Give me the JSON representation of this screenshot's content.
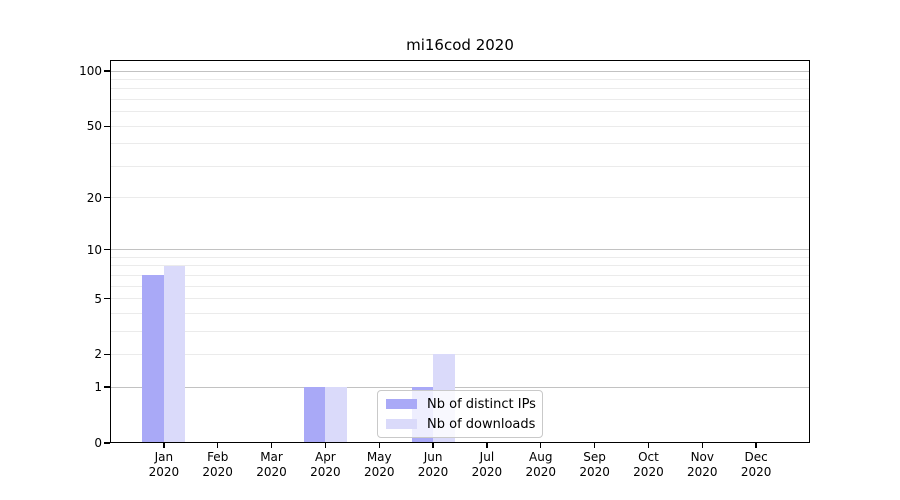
{
  "title": "mi16cod 2020",
  "chart_data": {
    "type": "bar",
    "title": "mi16cod 2020",
    "categories": [
      "Jan",
      "Feb",
      "Mar",
      "Apr",
      "May",
      "Jun",
      "Jul",
      "Aug",
      "Sep",
      "Oct",
      "Nov",
      "Dec"
    ],
    "x_tick_second_line": "2020",
    "series": [
      {
        "name": "Nb of distinct IPs",
        "color": "#a9a9f7",
        "values": [
          7,
          0,
          0,
          1,
          0,
          1,
          0,
          0,
          0,
          0,
          0,
          0
        ]
      },
      {
        "name": "Nb of downloads",
        "color": "#dadafa",
        "values": [
          8,
          0,
          0,
          1,
          0,
          2,
          0,
          0,
          0,
          0,
          0,
          0
        ]
      }
    ],
    "xlabel": "",
    "ylabel": "",
    "y_scale": "log10(value+1)",
    "y_axis": {
      "ticks": [
        0,
        1,
        2,
        5,
        10,
        20,
        50,
        100
      ],
      "max": 115,
      "major_gridlines": [
        1,
        10,
        100
      ],
      "minor_gridlines": [
        2,
        3,
        4,
        5,
        6,
        7,
        8,
        9,
        20,
        30,
        40,
        50,
        60,
        70,
        80,
        90
      ]
    },
    "grid": true,
    "legend_position": "lower-center"
  },
  "colors": {
    "background": "#ffffff",
    "axis": "#000000",
    "major_grid": "#c2c2c2",
    "minor_grid": "#ebebeb",
    "legend_border": "#c9c9c9"
  }
}
